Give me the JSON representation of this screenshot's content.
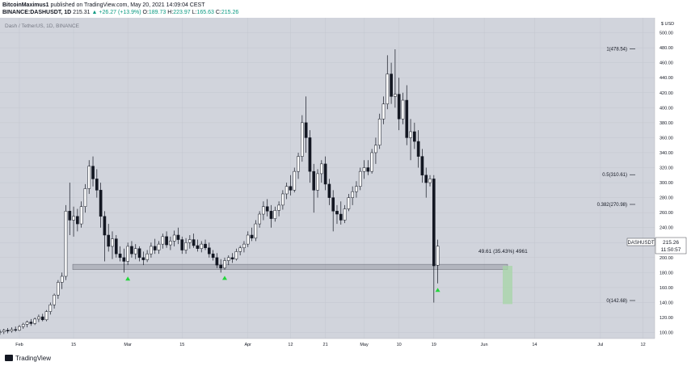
{
  "header": {
    "author": "BitcoinMaximus1",
    "published_text": "published on TradingView.com, May 20, 2021 14:09:04 CEST",
    "symbol": "BINANCE:DASHUSDT, 1D",
    "last": "215.31",
    "change": "▲ +26.27 (+13.9%)",
    "o_label": "O:",
    "o_value": "189.73",
    "h_label": "H:",
    "h_value": "223.97",
    "l_label": "L:",
    "l_value": "165.63",
    "c_label": "C:",
    "c_value": "215.26"
  },
  "pane_title": "Dash / TetherUS, 1D, BINANCE",
  "price_axis": {
    "currency": "$ USD",
    "ticks": [
      "500.00",
      "480.00",
      "460.00",
      "440.00",
      "420.00",
      "400.00",
      "380.00",
      "360.00",
      "340.00",
      "320.00",
      "300.00",
      "280.00",
      "260.00",
      "240.00",
      "220.00",
      "200.00",
      "180.00",
      "160.00",
      "140.00",
      "120.00",
      "100.00"
    ]
  },
  "time_axis": {
    "labels": [
      "Feb",
      "15",
      "Mar",
      "15",
      "Apr",
      "12",
      "21",
      "May",
      "10",
      "19",
      "Jun",
      "14",
      "Jul",
      "12"
    ]
  },
  "symbol_tag": {
    "name": "DASHUSDT",
    "price": "215.26",
    "countdown": "11:50:57"
  },
  "fib_levels": [
    {
      "label": "1(478.54)",
      "price": 478.54
    },
    {
      "label": "0.5(310.61)",
      "price": 310.61
    },
    {
      "label": "0.382(270.98)",
      "price": 270.98
    },
    {
      "label": "0(142.68)",
      "price": 142.68
    }
  ],
  "measure_text": "49.61 (35.43%) 4961",
  "support_zone": {
    "low": 184,
    "high": 191
  },
  "colors": {
    "plot_bg": "#d1d4dc",
    "grid": "#c4c7cf",
    "candle_up": "#ffffff",
    "candle_down": "#131722",
    "candle_outline": "#131722",
    "arrow_green": "#22d63a",
    "projection": "#a5d6a7"
  },
  "footer": {
    "logo_text": "TradingView",
    "logo_icon": "tradingview-logo-icon"
  },
  "chart_data": {
    "type": "candlestick",
    "title": "Dash / TetherUS, 1D, BINANCE",
    "xlabel": "",
    "ylabel": "",
    "ylim": [
      92,
      520
    ],
    "x_range": [
      "2021-01-27",
      "2021-07-15"
    ],
    "grid": true,
    "series": [
      {
        "name": "DASHUSDT",
        "candles": [
          {
            "date": "2021-01-27",
            "o": 100,
            "h": 104,
            "l": 97,
            "c": 101
          },
          {
            "date": "2021-01-28",
            "o": 101,
            "h": 105,
            "l": 98,
            "c": 103
          },
          {
            "date": "2021-01-29",
            "o": 103,
            "h": 106,
            "l": 99,
            "c": 102
          },
          {
            "date": "2021-01-30",
            "o": 102,
            "h": 107,
            "l": 100,
            "c": 104
          },
          {
            "date": "2021-01-31",
            "o": 104,
            "h": 108,
            "l": 101,
            "c": 103
          },
          {
            "date": "2021-02-01",
            "o": 103,
            "h": 110,
            "l": 102,
            "c": 108
          },
          {
            "date": "2021-02-02",
            "o": 108,
            "h": 113,
            "l": 105,
            "c": 111
          },
          {
            "date": "2021-02-03",
            "o": 111,
            "h": 116,
            "l": 107,
            "c": 114
          },
          {
            "date": "2021-02-04",
            "o": 114,
            "h": 118,
            "l": 109,
            "c": 112
          },
          {
            "date": "2021-02-05",
            "o": 112,
            "h": 120,
            "l": 110,
            "c": 118
          },
          {
            "date": "2021-02-06",
            "o": 118,
            "h": 124,
            "l": 114,
            "c": 121
          },
          {
            "date": "2021-02-07",
            "o": 121,
            "h": 125,
            "l": 115,
            "c": 117
          },
          {
            "date": "2021-02-08",
            "o": 117,
            "h": 130,
            "l": 115,
            "c": 128
          },
          {
            "date": "2021-02-09",
            "o": 128,
            "h": 140,
            "l": 124,
            "c": 137
          },
          {
            "date": "2021-02-10",
            "o": 137,
            "h": 152,
            "l": 132,
            "c": 150
          },
          {
            "date": "2021-02-11",
            "o": 150,
            "h": 170,
            "l": 145,
            "c": 167
          },
          {
            "date": "2021-02-12",
            "o": 167,
            "h": 180,
            "l": 158,
            "c": 175
          },
          {
            "date": "2021-02-13",
            "o": 175,
            "h": 270,
            "l": 170,
            "c": 262
          },
          {
            "date": "2021-02-14",
            "o": 262,
            "h": 300,
            "l": 230,
            "c": 250
          },
          {
            "date": "2021-02-15",
            "o": 250,
            "h": 268,
            "l": 228,
            "c": 255
          },
          {
            "date": "2021-02-16",
            "o": 255,
            "h": 265,
            "l": 235,
            "c": 245
          },
          {
            "date": "2021-02-17",
            "o": 245,
            "h": 275,
            "l": 240,
            "c": 268
          },
          {
            "date": "2021-02-18",
            "o": 268,
            "h": 298,
            "l": 260,
            "c": 292
          },
          {
            "date": "2021-02-19",
            "o": 292,
            "h": 330,
            "l": 285,
            "c": 322
          },
          {
            "date": "2021-02-20",
            "o": 322,
            "h": 335,
            "l": 295,
            "c": 305
          },
          {
            "date": "2021-02-21",
            "o": 305,
            "h": 318,
            "l": 280,
            "c": 290
          },
          {
            "date": "2021-02-22",
            "o": 290,
            "h": 300,
            "l": 240,
            "c": 255
          },
          {
            "date": "2021-02-23",
            "o": 255,
            "h": 262,
            "l": 195,
            "c": 230
          },
          {
            "date": "2021-02-24",
            "o": 230,
            "h": 245,
            "l": 208,
            "c": 215
          },
          {
            "date": "2021-02-25",
            "o": 215,
            "h": 235,
            "l": 198,
            "c": 225
          },
          {
            "date": "2021-02-26",
            "o": 225,
            "h": 230,
            "l": 200,
            "c": 205
          },
          {
            "date": "2021-02-27",
            "o": 205,
            "h": 215,
            "l": 195,
            "c": 200
          },
          {
            "date": "2021-02-28",
            "o": 200,
            "h": 212,
            "l": 180,
            "c": 195
          },
          {
            "date": "2021-03-01",
            "o": 195,
            "h": 220,
            "l": 190,
            "c": 215
          },
          {
            "date": "2021-03-02",
            "o": 215,
            "h": 222,
            "l": 200,
            "c": 205
          },
          {
            "date": "2021-03-03",
            "o": 205,
            "h": 218,
            "l": 198,
            "c": 212
          },
          {
            "date": "2021-03-04",
            "o": 212,
            "h": 215,
            "l": 195,
            "c": 200
          },
          {
            "date": "2021-03-05",
            "o": 200,
            "h": 208,
            "l": 190,
            "c": 197
          },
          {
            "date": "2021-03-06",
            "o": 197,
            "h": 210,
            "l": 194,
            "c": 205
          },
          {
            "date": "2021-03-07",
            "o": 205,
            "h": 220,
            "l": 200,
            "c": 215
          },
          {
            "date": "2021-03-08",
            "o": 215,
            "h": 225,
            "l": 205,
            "c": 210
          },
          {
            "date": "2021-03-09",
            "o": 210,
            "h": 222,
            "l": 205,
            "c": 218
          },
          {
            "date": "2021-03-10",
            "o": 218,
            "h": 232,
            "l": 212,
            "c": 228
          },
          {
            "date": "2021-03-11",
            "o": 228,
            "h": 235,
            "l": 213,
            "c": 217
          },
          {
            "date": "2021-03-12",
            "o": 217,
            "h": 228,
            "l": 210,
            "c": 222
          },
          {
            "date": "2021-03-13",
            "o": 222,
            "h": 236,
            "l": 215,
            "c": 230
          },
          {
            "date": "2021-03-14",
            "o": 230,
            "h": 240,
            "l": 218,
            "c": 224
          },
          {
            "date": "2021-03-15",
            "o": 224,
            "h": 228,
            "l": 205,
            "c": 210
          },
          {
            "date": "2021-03-16",
            "o": 210,
            "h": 226,
            "l": 205,
            "c": 220
          },
          {
            "date": "2021-03-17",
            "o": 220,
            "h": 230,
            "l": 212,
            "c": 224
          },
          {
            "date": "2021-03-18",
            "o": 224,
            "h": 232,
            "l": 213,
            "c": 216
          },
          {
            "date": "2021-03-19",
            "o": 216,
            "h": 224,
            "l": 208,
            "c": 212
          },
          {
            "date": "2021-03-20",
            "o": 212,
            "h": 222,
            "l": 207,
            "c": 218
          },
          {
            "date": "2021-03-21",
            "o": 218,
            "h": 224,
            "l": 210,
            "c": 213
          },
          {
            "date": "2021-03-22",
            "o": 213,
            "h": 220,
            "l": 200,
            "c": 205
          },
          {
            "date": "2021-03-23",
            "o": 205,
            "h": 210,
            "l": 196,
            "c": 200
          },
          {
            "date": "2021-03-24",
            "o": 200,
            "h": 206,
            "l": 186,
            "c": 190
          },
          {
            "date": "2021-03-25",
            "o": 190,
            "h": 198,
            "l": 180,
            "c": 186
          },
          {
            "date": "2021-03-26",
            "o": 186,
            "h": 200,
            "l": 184,
            "c": 196
          },
          {
            "date": "2021-03-27",
            "o": 196,
            "h": 203,
            "l": 190,
            "c": 200
          },
          {
            "date": "2021-03-28",
            "o": 200,
            "h": 206,
            "l": 193,
            "c": 198
          },
          {
            "date": "2021-03-29",
            "o": 198,
            "h": 212,
            "l": 196,
            "c": 208
          },
          {
            "date": "2021-03-30",
            "o": 208,
            "h": 216,
            "l": 203,
            "c": 213
          },
          {
            "date": "2021-03-31",
            "o": 213,
            "h": 222,
            "l": 207,
            "c": 218
          },
          {
            "date": "2021-04-01",
            "o": 218,
            "h": 235,
            "l": 214,
            "c": 230
          },
          {
            "date": "2021-04-02",
            "o": 230,
            "h": 240,
            "l": 222,
            "c": 226
          },
          {
            "date": "2021-04-03",
            "o": 226,
            "h": 250,
            "l": 222,
            "c": 245
          },
          {
            "date": "2021-04-04",
            "o": 245,
            "h": 262,
            "l": 240,
            "c": 258
          },
          {
            "date": "2021-04-05",
            "o": 258,
            "h": 275,
            "l": 250,
            "c": 268
          },
          {
            "date": "2021-04-06",
            "o": 268,
            "h": 278,
            "l": 255,
            "c": 262
          },
          {
            "date": "2021-04-07",
            "o": 262,
            "h": 270,
            "l": 240,
            "c": 252
          },
          {
            "date": "2021-04-08",
            "o": 252,
            "h": 268,
            "l": 248,
            "c": 263
          },
          {
            "date": "2021-04-09",
            "o": 263,
            "h": 275,
            "l": 255,
            "c": 270
          },
          {
            "date": "2021-04-10",
            "o": 270,
            "h": 290,
            "l": 264,
            "c": 285
          },
          {
            "date": "2021-04-11",
            "o": 285,
            "h": 300,
            "l": 278,
            "c": 295
          },
          {
            "date": "2021-04-12",
            "o": 295,
            "h": 310,
            "l": 283,
            "c": 290
          },
          {
            "date": "2021-04-13",
            "o": 290,
            "h": 320,
            "l": 287,
            "c": 315
          },
          {
            "date": "2021-04-14",
            "o": 315,
            "h": 340,
            "l": 305,
            "c": 335
          },
          {
            "date": "2021-04-15",
            "o": 335,
            "h": 390,
            "l": 328,
            "c": 380
          },
          {
            "date": "2021-04-16",
            "o": 380,
            "h": 415,
            "l": 340,
            "c": 360
          },
          {
            "date": "2021-04-17",
            "o": 360,
            "h": 370,
            "l": 300,
            "c": 315
          },
          {
            "date": "2021-04-18",
            "o": 315,
            "h": 325,
            "l": 260,
            "c": 290
          },
          {
            "date": "2021-04-19",
            "o": 290,
            "h": 318,
            "l": 280,
            "c": 312
          },
          {
            "date": "2021-04-20",
            "o": 312,
            "h": 330,
            "l": 300,
            "c": 325
          },
          {
            "date": "2021-04-21",
            "o": 325,
            "h": 335,
            "l": 290,
            "c": 298
          },
          {
            "date": "2021-04-22",
            "o": 298,
            "h": 305,
            "l": 270,
            "c": 280
          },
          {
            "date": "2021-04-23",
            "o": 280,
            "h": 290,
            "l": 235,
            "c": 262
          },
          {
            "date": "2021-04-24",
            "o": 262,
            "h": 270,
            "l": 245,
            "c": 258
          },
          {
            "date": "2021-04-25",
            "o": 258,
            "h": 275,
            "l": 244,
            "c": 250
          },
          {
            "date": "2021-04-26",
            "o": 250,
            "h": 270,
            "l": 246,
            "c": 265
          },
          {
            "date": "2021-04-27",
            "o": 265,
            "h": 285,
            "l": 262,
            "c": 280
          },
          {
            "date": "2021-04-28",
            "o": 280,
            "h": 295,
            "l": 270,
            "c": 288
          },
          {
            "date": "2021-04-29",
            "o": 288,
            "h": 302,
            "l": 280,
            "c": 295
          },
          {
            "date": "2021-04-30",
            "o": 295,
            "h": 320,
            "l": 290,
            "c": 315
          },
          {
            "date": "2021-05-01",
            "o": 315,
            "h": 330,
            "l": 305,
            "c": 320
          },
          {
            "date": "2021-05-02",
            "o": 320,
            "h": 330,
            "l": 310,
            "c": 315
          },
          {
            "date": "2021-05-03",
            "o": 315,
            "h": 345,
            "l": 312,
            "c": 340
          },
          {
            "date": "2021-05-04",
            "o": 340,
            "h": 360,
            "l": 325,
            "c": 350
          },
          {
            "date": "2021-05-05",
            "o": 350,
            "h": 392,
            "l": 345,
            "c": 385
          },
          {
            "date": "2021-05-06",
            "o": 385,
            "h": 415,
            "l": 378,
            "c": 405
          },
          {
            "date": "2021-05-07",
            "o": 405,
            "h": 470,
            "l": 398,
            "c": 445
          },
          {
            "date": "2021-05-08",
            "o": 445,
            "h": 460,
            "l": 405,
            "c": 415
          },
          {
            "date": "2021-05-09",
            "o": 415,
            "h": 478,
            "l": 400,
            "c": 418
          },
          {
            "date": "2021-05-10",
            "o": 418,
            "h": 440,
            "l": 370,
            "c": 385
          },
          {
            "date": "2021-05-11",
            "o": 385,
            "h": 420,
            "l": 378,
            "c": 410
          },
          {
            "date": "2021-05-12",
            "o": 410,
            "h": 430,
            "l": 350,
            "c": 360
          },
          {
            "date": "2021-05-13",
            "o": 360,
            "h": 385,
            "l": 330,
            "c": 368
          },
          {
            "date": "2021-05-14",
            "o": 368,
            "h": 380,
            "l": 345,
            "c": 355
          },
          {
            "date": "2021-05-15",
            "o": 355,
            "h": 370,
            "l": 320,
            "c": 335
          },
          {
            "date": "2021-05-16",
            "o": 335,
            "h": 345,
            "l": 300,
            "c": 310
          },
          {
            "date": "2021-05-17",
            "o": 310,
            "h": 320,
            "l": 280,
            "c": 300
          },
          {
            "date": "2021-05-18",
            "o": 300,
            "h": 310,
            "l": 295,
            "c": 305
          },
          {
            "date": "2021-05-19",
            "o": 305,
            "h": 310,
            "l": 140,
            "c": 189
          },
          {
            "date": "2021-05-20",
            "o": 189.73,
            "h": 223.97,
            "l": 165.63,
            "c": 215.26
          }
        ]
      }
    ],
    "annotations": [
      {
        "text": "49.61 (35.43%) 4961"
      },
      {
        "text": "1(478.54)"
      },
      {
        "text": "0.5(310.61)"
      },
      {
        "text": "0.382(270.98)"
      },
      {
        "text": "0(142.68)"
      }
    ],
    "markers": [
      {
        "date": "2021-03-01",
        "price": 172,
        "shape": "up-arrow"
      },
      {
        "date": "2021-03-26",
        "price": 173,
        "shape": "up-arrow"
      },
      {
        "date": "2021-05-20",
        "price": 157,
        "shape": "up-arrow"
      }
    ]
  }
}
